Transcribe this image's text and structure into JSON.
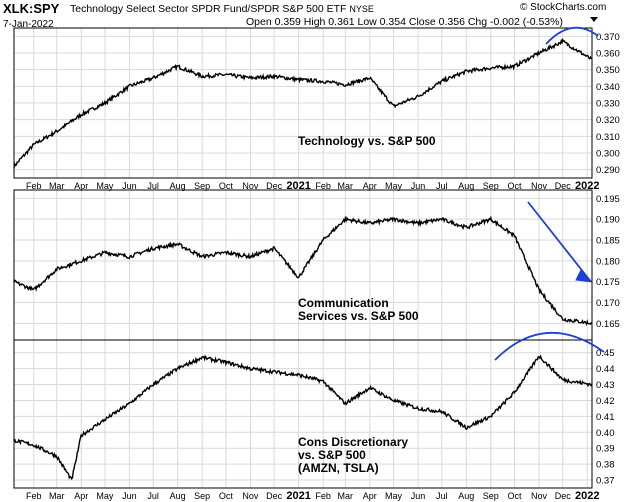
{
  "header": {
    "symbol": "XLK:SPY",
    "name": "Technology Select Sector SPDR Fund/SPDR S&P 500 ETF",
    "exchange": "NYSE",
    "date": "7-Jan-2022",
    "ohlc": "Open 0.359  High 0.361  Low 0.354  Close 0.356  Chg -0.002 (-0.53%)",
    "watermark": "© StockCharts.com"
  },
  "colors": {
    "line": "#000000",
    "annotation": "#1f3fd6",
    "grid": "#d9d9d9",
    "frame": "#000000"
  },
  "x_axis": {
    "ticks": [
      "Feb",
      "Mar",
      "Apr",
      "May",
      "Jun",
      "Jul",
      "Aug",
      "Sep",
      "Oct",
      "Nov",
      "Dec",
      "2021",
      "Feb",
      "Mar",
      "Apr",
      "May",
      "Jun",
      "Jul",
      "Aug",
      "Sep",
      "Oct",
      "Nov",
      "Dec",
      "2022"
    ]
  },
  "chart_data": [
    {
      "type": "line",
      "annotation": "Technology vs. S&P 500",
      "ylim": [
        0.285,
        0.375
      ],
      "yticks": [
        0.29,
        0.3,
        0.31,
        0.32,
        0.33,
        0.34,
        0.35,
        0.36,
        0.37
      ],
      "ytick_labels": [
        "0.290",
        "0.300",
        "0.310",
        "0.320",
        "0.330",
        "0.340",
        "0.350",
        "0.360",
        "0.370"
      ],
      "x": [
        "2020-01-07",
        "2020-02-01",
        "2020-03-01",
        "2020-04-01",
        "2020-05-01",
        "2020-06-01",
        "2020-07-01",
        "2020-08-01",
        "2020-09-01",
        "2020-10-01",
        "2020-11-01",
        "2020-12-01",
        "2021-01-01",
        "2021-02-01",
        "2021-03-01",
        "2021-04-01",
        "2021-05-01",
        "2021-06-01",
        "2021-07-01",
        "2021-08-01",
        "2021-09-01",
        "2021-10-01",
        "2021-11-01",
        "2021-12-01",
        "2022-01-07"
      ],
      "values": [
        0.292,
        0.305,
        0.313,
        0.323,
        0.33,
        0.34,
        0.345,
        0.352,
        0.346,
        0.347,
        0.345,
        0.346,
        0.344,
        0.343,
        0.341,
        0.345,
        0.328,
        0.334,
        0.343,
        0.349,
        0.351,
        0.352,
        0.36,
        0.367,
        0.356
      ]
    },
    {
      "type": "line",
      "annotation": "Communication\nServices vs. S&P 500",
      "ylim": [
        0.161,
        0.197
      ],
      "yticks": [
        0.165,
        0.17,
        0.175,
        0.18,
        0.185,
        0.19,
        0.195
      ],
      "ytick_labels": [
        "0.165",
        "0.170",
        "0.175",
        "0.180",
        "0.185",
        "0.190",
        "0.195"
      ],
      "x": [
        "2020-01-07",
        "2020-02-01",
        "2020-03-01",
        "2020-04-01",
        "2020-05-01",
        "2020-06-01",
        "2020-07-01",
        "2020-08-01",
        "2020-09-01",
        "2020-10-01",
        "2020-11-01",
        "2020-12-01",
        "2021-01-01",
        "2021-02-01",
        "2021-03-01",
        "2021-04-01",
        "2021-05-01",
        "2021-06-01",
        "2021-07-01",
        "2021-08-01",
        "2021-09-01",
        "2021-10-01",
        "2021-11-01",
        "2021-12-01",
        "2022-01-07"
      ],
      "values": [
        0.175,
        0.173,
        0.178,
        0.18,
        0.182,
        0.181,
        0.183,
        0.184,
        0.181,
        0.182,
        0.181,
        0.183,
        0.176,
        0.185,
        0.19,
        0.189,
        0.19,
        0.189,
        0.19,
        0.188,
        0.19,
        0.186,
        0.173,
        0.166,
        0.165
      ]
    },
    {
      "type": "line",
      "annotation": "Cons Discretionary\nvs. S&P 500\n(AMZN, TSLA)",
      "ylim": [
        0.365,
        0.458
      ],
      "yticks": [
        0.37,
        0.38,
        0.39,
        0.4,
        0.41,
        0.42,
        0.43,
        0.44,
        0.45
      ],
      "ytick_labels": [
        "0.37",
        "0.38",
        "0.39",
        "0.40",
        "0.41",
        "0.42",
        "0.43",
        "0.44",
        "0.45"
      ],
      "x": [
        "2020-01-07",
        "2020-02-01",
        "2020-03-01",
        "2020-03-20",
        "2020-04-01",
        "2020-05-01",
        "2020-06-01",
        "2020-07-01",
        "2020-08-01",
        "2020-09-01",
        "2020-10-01",
        "2020-11-01",
        "2020-12-01",
        "2021-01-01",
        "2021-02-01",
        "2021-03-01",
        "2021-04-01",
        "2021-05-01",
        "2021-06-01",
        "2021-07-01",
        "2021-08-01",
        "2021-09-01",
        "2021-10-01",
        "2021-11-01",
        "2021-12-01",
        "2022-01-07"
      ],
      "values": [
        0.395,
        0.392,
        0.385,
        0.37,
        0.398,
        0.408,
        0.418,
        0.43,
        0.44,
        0.447,
        0.444,
        0.44,
        0.438,
        0.436,
        0.432,
        0.418,
        0.428,
        0.42,
        0.415,
        0.413,
        0.403,
        0.41,
        0.425,
        0.448,
        0.433,
        0.43
      ]
    }
  ]
}
